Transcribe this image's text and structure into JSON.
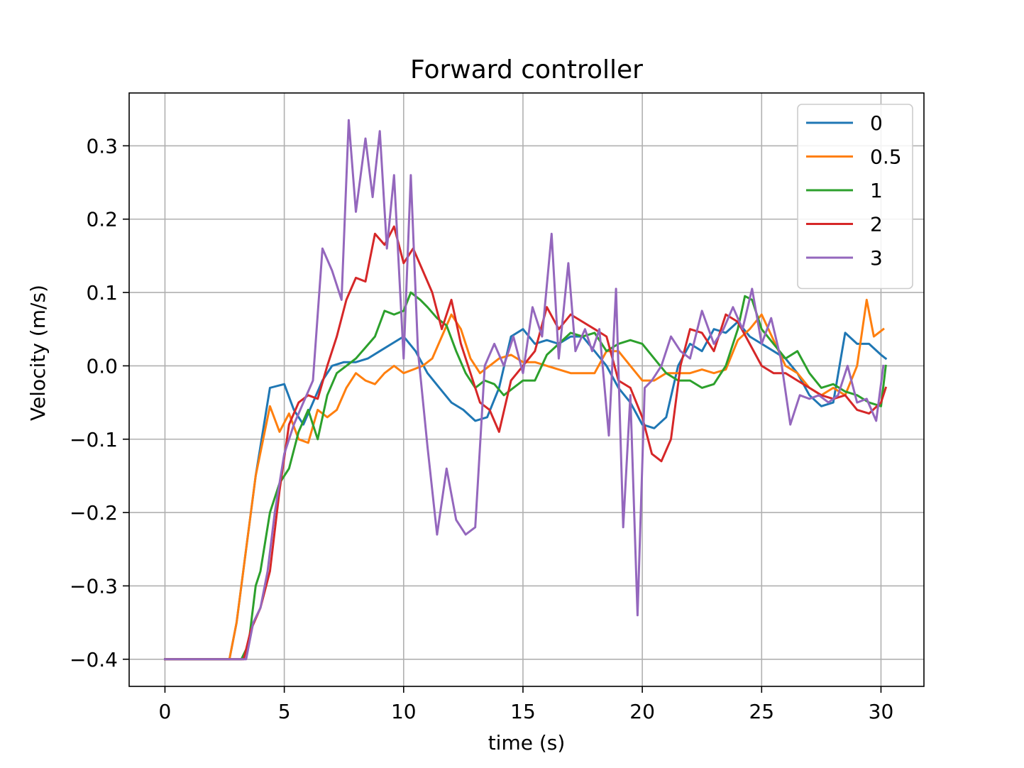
{
  "chart_data": {
    "type": "line",
    "title": "Forward controller",
    "xlabel": "time (s)",
    "ylabel": "Velocity   (m/s)",
    "xlim": [
      -1.5,
      31.8
    ],
    "ylim": [
      -0.437,
      0.372
    ],
    "xticks": [
      0,
      5,
      10,
      15,
      20,
      25,
      30
    ],
    "xtick_labels": [
      "0",
      "5",
      "10",
      "15",
      "20",
      "25",
      "30"
    ],
    "yticks": [
      0.3,
      0.2,
      0.1,
      0.0,
      -0.1,
      -0.2,
      -0.3,
      -0.4
    ],
    "ytick_labels": [
      "0.3",
      "0.2",
      "0.1",
      "0.0",
      "−0.1",
      "−0.2",
      "−0.3",
      "−0.4"
    ],
    "grid": true,
    "legend_position": "top-right",
    "series": [
      {
        "name": "0",
        "color": "#1f77b4",
        "x": [
          0,
          2.7,
          3.0,
          3.4,
          3.8,
          4.4,
          5.0,
          5.4,
          5.8,
          6.2,
          6.6,
          7.0,
          7.5,
          8.0,
          8.5,
          9.0,
          9.5,
          10.0,
          10.5,
          11.0,
          11.5,
          12.0,
          12.5,
          13.0,
          13.5,
          14.0,
          14.5,
          15.0,
          15.5,
          16.0,
          16.5,
          17.0,
          17.5,
          18.0,
          18.5,
          19.0,
          19.5,
          20.0,
          20.5,
          21.0,
          21.5,
          22.0,
          22.5,
          23.0,
          23.5,
          24.0,
          24.5,
          25.0,
          25.5,
          26.0,
          26.5,
          27.0,
          27.5,
          28.0,
          28.5,
          29.0,
          29.5,
          30.0,
          30.2
        ],
        "y": [
          -0.4,
          -0.4,
          -0.35,
          -0.25,
          -0.15,
          -0.03,
          -0.025,
          -0.06,
          -0.08,
          -0.05,
          -0.02,
          0.0,
          0.005,
          0.005,
          0.01,
          0.02,
          0.03,
          0.04,
          0.02,
          -0.01,
          -0.03,
          -0.05,
          -0.06,
          -0.075,
          -0.07,
          -0.03,
          0.04,
          0.05,
          0.03,
          0.035,
          0.03,
          0.04,
          0.04,
          0.02,
          0.0,
          -0.03,
          -0.05,
          -0.08,
          -0.085,
          -0.07,
          0.0,
          0.03,
          0.02,
          0.05,
          0.045,
          0.06,
          0.04,
          0.03,
          0.02,
          0.01,
          -0.01,
          -0.04,
          -0.055,
          -0.05,
          0.045,
          0.03,
          0.03,
          0.015,
          0.01
        ]
      },
      {
        "name": "0.5",
        "color": "#ff7f0e",
        "x": [
          0,
          2.7,
          3.0,
          3.4,
          3.8,
          4.4,
          4.8,
          5.2,
          5.6,
          6.0,
          6.4,
          6.8,
          7.2,
          7.6,
          8.0,
          8.4,
          8.8,
          9.2,
          9.6,
          10.0,
          10.4,
          10.8,
          11.2,
          11.6,
          12.0,
          12.4,
          12.8,
          13.2,
          13.6,
          14.0,
          14.5,
          15.0,
          15.5,
          16.0,
          16.5,
          17.0,
          17.5,
          18.0,
          18.5,
          19.0,
          19.5,
          20.0,
          20.5,
          21.0,
          21.5,
          22.0,
          22.5,
          23.0,
          23.5,
          24.0,
          24.5,
          25.0,
          25.5,
          26.0,
          26.5,
          27.0,
          27.5,
          28.0,
          28.5,
          29.0,
          29.4,
          29.7,
          30.1
        ],
        "y": [
          -0.4,
          -0.4,
          -0.35,
          -0.25,
          -0.15,
          -0.055,
          -0.09,
          -0.065,
          -0.1,
          -0.105,
          -0.06,
          -0.07,
          -0.06,
          -0.03,
          -0.01,
          -0.02,
          -0.025,
          -0.01,
          0.0,
          -0.01,
          -0.005,
          0.0,
          0.01,
          0.04,
          0.07,
          0.05,
          0.01,
          -0.01,
          0.0,
          0.01,
          0.015,
          0.005,
          0.005,
          0.0,
          -0.005,
          -0.01,
          -0.01,
          -0.01,
          0.02,
          0.02,
          0.0,
          -0.02,
          -0.02,
          -0.01,
          -0.01,
          -0.01,
          -0.005,
          -0.01,
          -0.005,
          0.035,
          0.05,
          0.07,
          0.035,
          0.0,
          -0.01,
          -0.03,
          -0.04,
          -0.03,
          -0.04,
          0.0,
          0.09,
          0.04,
          0.05
        ]
      },
      {
        "name": "1",
        "color": "#2ca02c",
        "x": [
          0,
          3.2,
          3.5,
          3.8,
          4.0,
          4.4,
          4.8,
          5.2,
          5.6,
          6.0,
          6.4,
          6.8,
          7.2,
          7.6,
          8.0,
          8.4,
          8.8,
          9.2,
          9.6,
          10.0,
          10.3,
          10.7,
          11.0,
          11.4,
          11.8,
          12.2,
          12.6,
          13.0,
          13.4,
          13.8,
          14.2,
          14.6,
          15.0,
          15.5,
          16.0,
          16.5,
          17.0,
          17.5,
          18.0,
          18.5,
          19.0,
          19.5,
          20.0,
          20.5,
          21.0,
          21.5,
          22.0,
          22.5,
          23.0,
          23.5,
          24.0,
          24.3,
          24.6,
          25.0,
          25.5,
          26.0,
          26.5,
          27.0,
          27.5,
          28.0,
          28.5,
          29.0,
          29.5,
          30.0,
          30.2
        ],
        "y": [
          -0.4,
          -0.4,
          -0.38,
          -0.3,
          -0.28,
          -0.2,
          -0.16,
          -0.14,
          -0.09,
          -0.06,
          -0.1,
          -0.04,
          -0.01,
          0.0,
          0.01,
          0.025,
          0.04,
          0.075,
          0.07,
          0.075,
          0.1,
          0.09,
          0.08,
          0.065,
          0.055,
          0.02,
          -0.01,
          -0.03,
          -0.02,
          -0.025,
          -0.04,
          -0.03,
          -0.02,
          -0.02,
          0.015,
          0.03,
          0.045,
          0.04,
          0.045,
          0.02,
          0.03,
          0.035,
          0.03,
          0.01,
          -0.01,
          -0.02,
          -0.02,
          -0.03,
          -0.025,
          0.0,
          0.05,
          0.095,
          0.09,
          0.05,
          0.03,
          0.01,
          0.02,
          -0.01,
          -0.03,
          -0.025,
          -0.035,
          -0.04,
          -0.05,
          -0.055,
          0.0
        ]
      },
      {
        "name": "2",
        "color": "#d62728",
        "x": [
          0,
          3.3,
          3.6,
          4.0,
          4.4,
          4.8,
          5.2,
          5.6,
          6.0,
          6.4,
          6.8,
          7.2,
          7.6,
          8.0,
          8.4,
          8.8,
          9.2,
          9.6,
          10.0,
          10.4,
          10.8,
          11.2,
          11.6,
          12.0,
          12.4,
          12.8,
          13.2,
          13.6,
          14.0,
          14.5,
          15.0,
          15.5,
          16.0,
          16.5,
          17.0,
          17.5,
          18.0,
          18.5,
          19.0,
          19.5,
          20.0,
          20.4,
          20.8,
          21.2,
          21.6,
          22.0,
          22.5,
          23.0,
          23.5,
          24.0,
          24.5,
          25.0,
          25.5,
          26.0,
          26.5,
          27.0,
          27.5,
          28.0,
          28.5,
          29.0,
          29.5,
          30.0,
          30.2
        ],
        "y": [
          -0.4,
          -0.4,
          -0.36,
          -0.33,
          -0.28,
          -0.17,
          -0.08,
          -0.05,
          -0.04,
          -0.045,
          0.0,
          0.04,
          0.09,
          0.12,
          0.115,
          0.18,
          0.165,
          0.19,
          0.14,
          0.16,
          0.13,
          0.1,
          0.05,
          0.09,
          0.03,
          -0.01,
          -0.05,
          -0.06,
          -0.09,
          -0.02,
          0.0,
          0.02,
          0.08,
          0.05,
          0.07,
          0.06,
          0.05,
          0.04,
          -0.02,
          -0.03,
          -0.07,
          -0.12,
          -0.13,
          -0.1,
          0.0,
          0.05,
          0.045,
          0.02,
          0.07,
          0.06,
          0.03,
          0.0,
          -0.01,
          -0.01,
          -0.02,
          -0.03,
          -0.04,
          -0.045,
          -0.04,
          -0.06,
          -0.065,
          -0.05,
          -0.03
        ]
      },
      {
        "name": "3",
        "color": "#9467bd",
        "x": [
          0,
          3.4,
          3.7,
          4.0,
          4.3,
          4.6,
          5.0,
          5.4,
          5.8,
          6.2,
          6.6,
          7.0,
          7.4,
          7.7,
          8.0,
          8.4,
          8.7,
          9.0,
          9.3,
          9.6,
          10.0,
          10.3,
          10.6,
          11.0,
          11.4,
          11.8,
          12.2,
          12.6,
          13.0,
          13.4,
          13.8,
          14.2,
          14.6,
          15.0,
          15.4,
          15.8,
          16.2,
          16.5,
          16.9,
          17.2,
          17.6,
          17.9,
          18.2,
          18.6,
          18.9,
          19.2,
          19.5,
          19.8,
          20.1,
          20.4,
          20.8,
          21.2,
          21.6,
          22.0,
          22.5,
          23.0,
          23.4,
          23.8,
          24.2,
          24.6,
          25.0,
          25.4,
          25.8,
          26.2,
          26.6,
          27.0,
          27.4,
          27.8,
          28.2,
          28.6,
          29.0,
          29.4,
          29.8,
          30.1
        ],
        "y": [
          -0.4,
          -0.4,
          -0.35,
          -0.33,
          -0.28,
          -0.2,
          -0.12,
          -0.08,
          -0.05,
          -0.02,
          0.16,
          0.13,
          0.09,
          0.335,
          0.21,
          0.31,
          0.23,
          0.32,
          0.16,
          0.26,
          0.01,
          0.26,
          0.02,
          -0.11,
          -0.23,
          -0.14,
          -0.21,
          -0.23,
          -0.22,
          0.0,
          0.03,
          0.0,
          0.04,
          -0.01,
          0.08,
          0.04,
          0.18,
          0.01,
          0.14,
          0.02,
          0.05,
          0.02,
          0.05,
          -0.095,
          0.105,
          -0.22,
          -0.04,
          -0.34,
          -0.03,
          -0.02,
          0.0,
          0.04,
          0.02,
          0.01,
          0.075,
          0.03,
          0.05,
          0.08,
          0.05,
          0.105,
          0.03,
          0.065,
          0.01,
          -0.08,
          -0.04,
          -0.045,
          -0.04,
          -0.05,
          -0.04,
          0.0,
          -0.05,
          -0.045,
          -0.075,
          0.0
        ]
      }
    ]
  }
}
